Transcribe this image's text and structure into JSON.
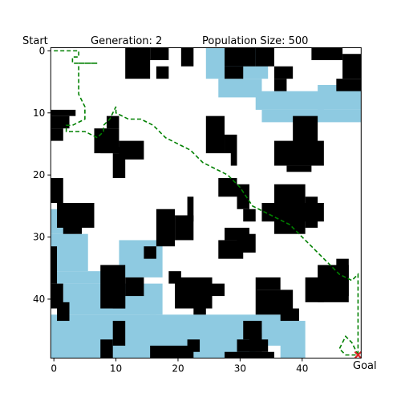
{
  "header": {
    "start_label": "Start",
    "generation_text": "Generation: 2",
    "population_text": "Population Size: 500"
  },
  "goal_label": "Goal",
  "chart_data": {
    "type": "heatmap",
    "title": "",
    "grid_size": 50,
    "xlim": [
      0,
      49
    ],
    "ylim": [
      49,
      0
    ],
    "x_ticks": [
      0,
      10,
      20,
      30,
      40
    ],
    "y_ticks": [
      0,
      10,
      20,
      30,
      40
    ],
    "colors": {
      "obstacle": "#000000",
      "water": "#8ecae1",
      "free": "#ffffff",
      "path": "#008000",
      "goal_marker": "#dd2222"
    },
    "start": [
      0,
      0
    ],
    "goal": [
      49,
      49
    ],
    "path": [
      [
        0,
        0
      ],
      [
        4,
        0
      ],
      [
        4,
        1
      ],
      [
        3,
        1
      ],
      [
        3,
        2
      ],
      [
        7,
        2
      ],
      [
        6,
        2
      ],
      [
        4,
        2
      ],
      [
        4,
        7
      ],
      [
        5,
        9
      ],
      [
        5,
        11
      ],
      [
        3,
        12
      ],
      [
        2,
        12
      ],
      [
        2,
        13
      ],
      [
        5,
        13
      ],
      [
        7,
        14
      ],
      [
        8,
        13
      ],
      [
        8,
        12
      ],
      [
        9,
        11
      ],
      [
        10,
        9
      ],
      [
        10,
        10
      ],
      [
        12,
        11
      ],
      [
        14,
        11
      ],
      [
        16,
        12
      ],
      [
        18,
        14
      ],
      [
        20,
        15
      ],
      [
        22,
        16
      ],
      [
        24,
        18
      ],
      [
        26,
        19
      ],
      [
        28,
        20
      ],
      [
        30,
        22
      ],
      [
        32,
        25
      ],
      [
        34,
        26
      ],
      [
        36,
        27
      ],
      [
        38,
        28
      ],
      [
        40,
        30
      ],
      [
        42,
        32
      ],
      [
        44,
        34
      ],
      [
        46,
        36
      ],
      [
        48,
        37
      ],
      [
        49,
        36
      ],
      [
        49,
        49
      ],
      [
        47,
        49
      ],
      [
        46,
        48
      ],
      [
        47,
        46
      ],
      [
        48,
        47
      ],
      [
        49,
        49
      ]
    ]
  }
}
